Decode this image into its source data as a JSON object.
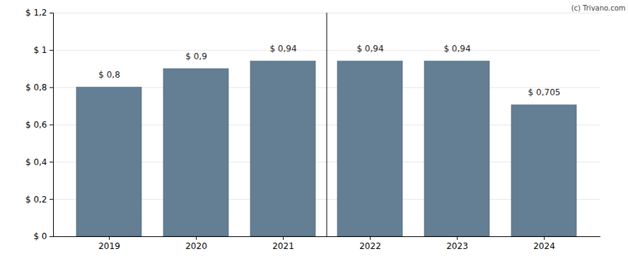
{
  "chart_data": {
    "type": "bar",
    "categories": [
      "2019",
      "2020",
      "2021",
      "2022",
      "2023",
      "2024"
    ],
    "values": [
      0.8,
      0.9,
      0.94,
      0.94,
      0.94,
      0.705
    ],
    "value_labels": [
      "$ 0,8",
      "$ 0,9",
      "$ 0,94",
      "$ 0,94",
      "$ 0,94",
      "$ 0,705"
    ],
    "data_labels": true,
    "color": "#647f93",
    "ylim": [
      0,
      1.2
    ],
    "yticks": [
      {
        "value": 0,
        "label": "$ 0"
      },
      {
        "value": 0.2,
        "label": "$ 0,2"
      },
      {
        "value": 0.4,
        "label": "$ 0,4"
      },
      {
        "value": 0.6,
        "label": "$ 0,6"
      },
      {
        "value": 0.8,
        "label": "$ 0,8"
      },
      {
        "value": 1,
        "label": "$ 1"
      },
      {
        "value": 1.2,
        "label": "$ 1,2"
      }
    ],
    "grid": true,
    "annotations": [
      "(c) Trivano.com"
    ]
  }
}
